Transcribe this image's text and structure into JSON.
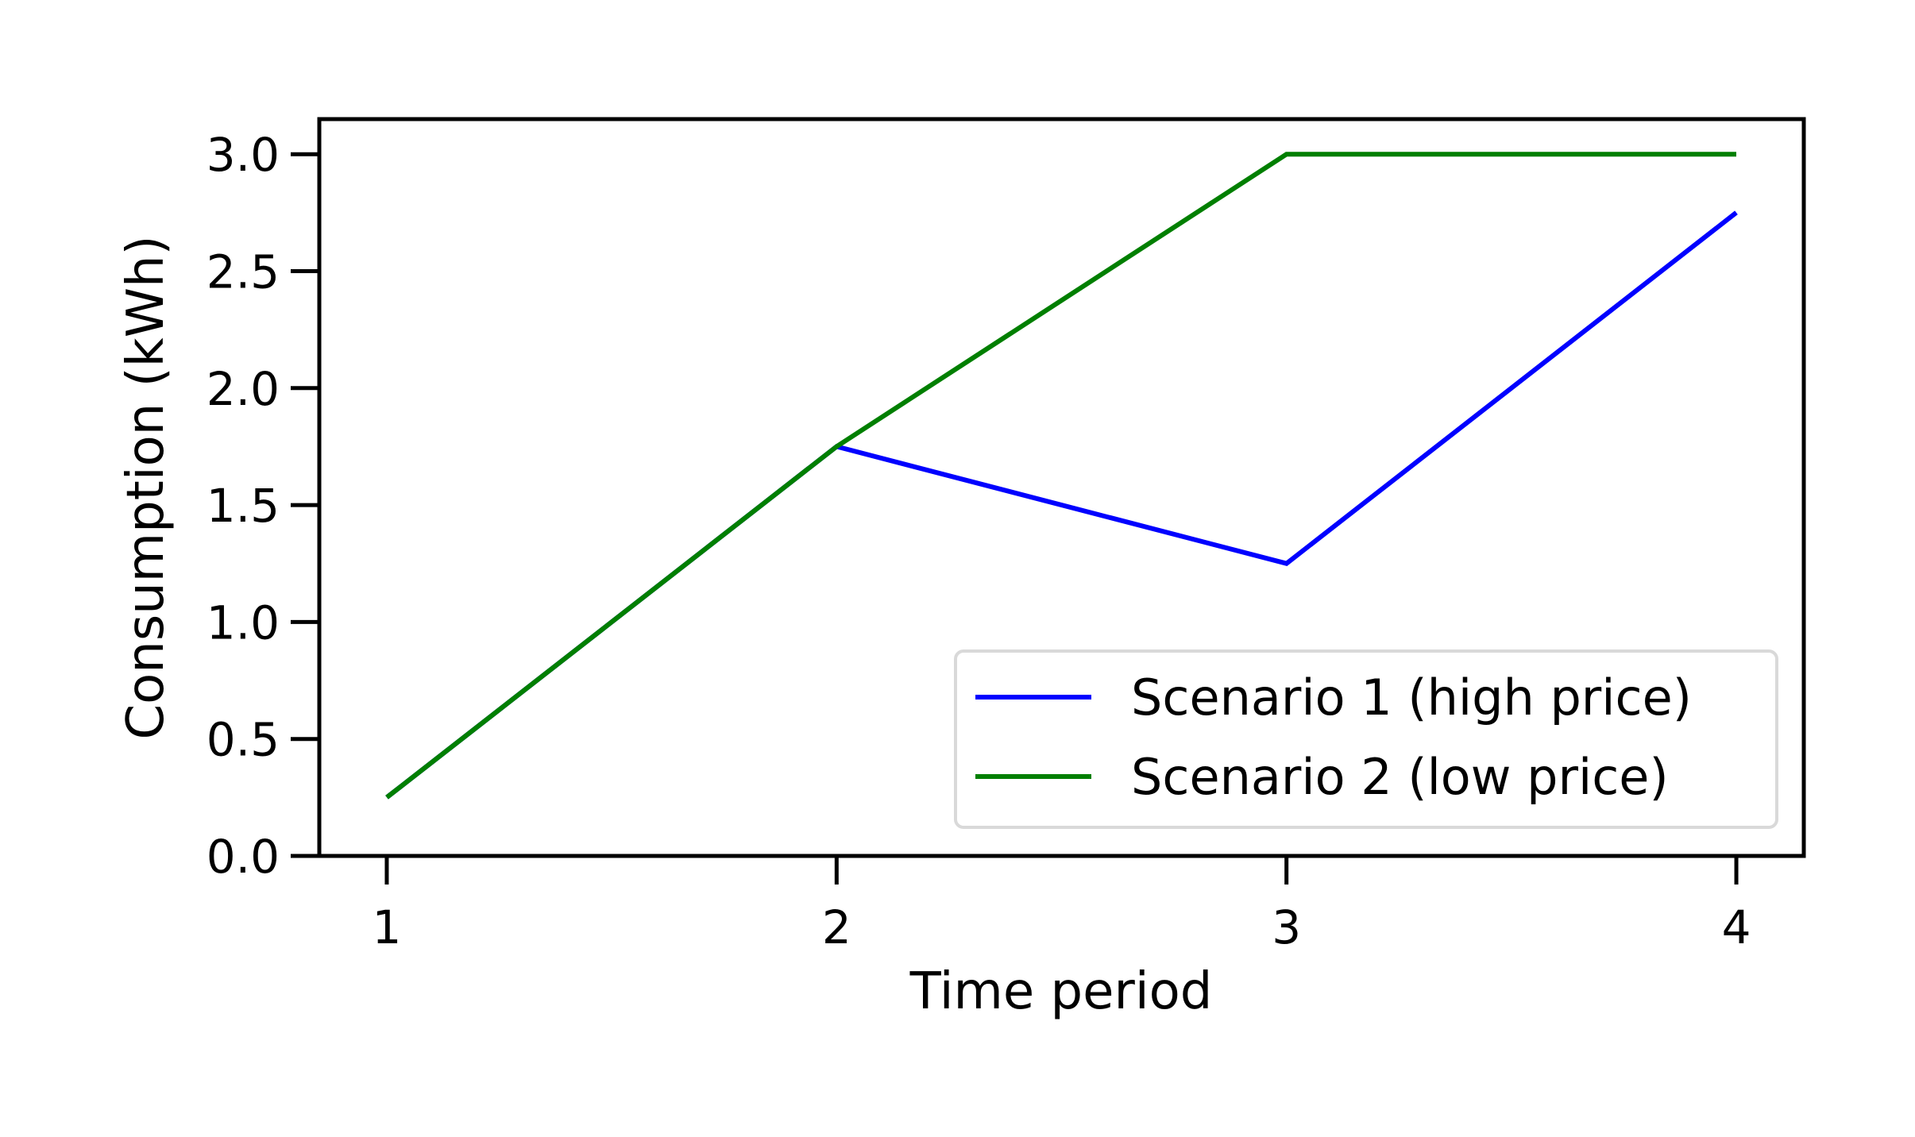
{
  "chart_data": {
    "type": "line",
    "title": "",
    "xlabel": "Time period",
    "ylabel": "Consumption (kWh)",
    "x": [
      1,
      2,
      3,
      4
    ],
    "x_ticks": [
      1,
      2,
      3,
      4
    ],
    "x_tick_labels": [
      "1",
      "2",
      "3",
      "4"
    ],
    "xlim": [
      0.85,
      4.15
    ],
    "ylim": [
      0.0,
      3.15
    ],
    "y_ticks": [
      0.0,
      0.5,
      1.0,
      1.5,
      2.0,
      2.5,
      3.0
    ],
    "y_tick_labels": [
      "0.0",
      "0.5",
      "1.0",
      "1.5",
      "2.0",
      "2.5",
      "3.0"
    ],
    "grid": false,
    "legend_placement": "lower-right",
    "series": [
      {
        "name": "Scenario 1 (high price)",
        "color": "#0000ff",
        "values": [
          0.25,
          1.75,
          1.25,
          2.75
        ]
      },
      {
        "name": "Scenario 2 (low price)",
        "color": "#007f00",
        "values": [
          0.25,
          1.75,
          3.0,
          3.0
        ]
      }
    ]
  }
}
